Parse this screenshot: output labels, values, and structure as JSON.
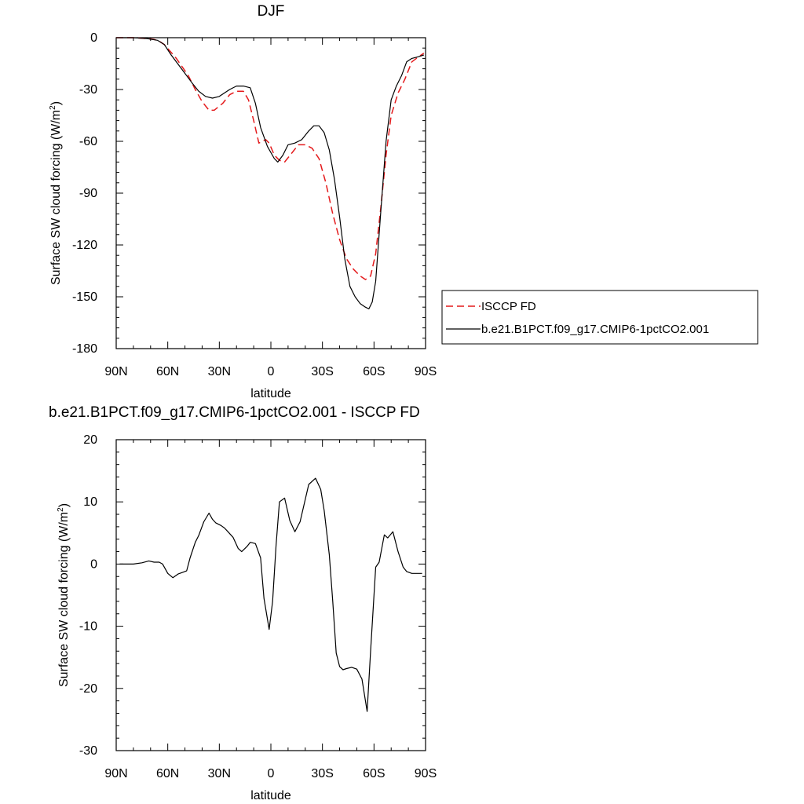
{
  "chart_data": [
    {
      "type": "line",
      "title": "DJF",
      "xlabel": "latitude",
      "ylabel_prefix": "Surface SW cloud forcing (W/m",
      "ylabel_sup": "2",
      "ylabel_suffix": ")",
      "xlim": [
        90,
        -90
      ],
      "ylim": [
        -180,
        0
      ],
      "yticks": [
        0,
        -30,
        -60,
        -90,
        -120,
        -150,
        -180
      ],
      "ytick_labels": [
        "0",
        "-30",
        "-60",
        "-90",
        "-120",
        "-150",
        "-180"
      ],
      "xticks": [
        90,
        60,
        30,
        0,
        -30,
        -60,
        -90
      ],
      "xtick_labels": [
        "90N",
        "60N",
        "30N",
        "0",
        "30S",
        "60S",
        "90S"
      ],
      "legend": {
        "position": "right",
        "entries": [
          "ISCCP FD",
          "b.e21.B1PCT.f09_g17.CMIP6-1pctCO2.001"
        ]
      },
      "series": [
        {
          "name": "ISCCP FD",
          "color": "#e41a1c",
          "dash": "dashed",
          "x": [
            90,
            80,
            72,
            68,
            65,
            62,
            55,
            48,
            44,
            40,
            36,
            33,
            28,
            24,
            20,
            16,
            13,
            10,
            7,
            3,
            1,
            -2,
            -5,
            -8,
            -12,
            -16,
            -20,
            -24,
            -28,
            -32,
            -36,
            -40,
            -44,
            -48,
            -52,
            -55,
            -58,
            -61,
            -64,
            -67,
            -70,
            -74,
            -78,
            -82,
            -86,
            -89
          ],
          "values": [
            0,
            0,
            -0.5,
            -1,
            -2,
            -4,
            -12,
            -22,
            -30,
            -37,
            -42,
            -42,
            -38,
            -33,
            -31,
            -31,
            -36,
            -48,
            -61,
            -59,
            -61,
            -68,
            -71,
            -72,
            -67,
            -62,
            -62,
            -64,
            -70,
            -84,
            -102,
            -117,
            -128,
            -134,
            -138,
            -140,
            -138,
            -125,
            -98,
            -68,
            -45,
            -32,
            -24,
            -14,
            -11,
            -9
          ]
        },
        {
          "name": "b.e21.B1PCT.f09_g17.CMIP6-1pctCO2.001",
          "color": "#000000",
          "dash": "solid",
          "x": [
            90,
            80,
            72,
            66,
            62,
            58,
            52,
            46,
            42,
            38,
            34,
            30,
            24,
            20,
            16,
            12,
            9,
            6,
            2,
            -2,
            -4,
            -7,
            -10,
            -14,
            -18,
            -22,
            -25,
            -28,
            -31,
            -34,
            -37,
            -40,
            -43,
            -46,
            -49,
            -52,
            -55,
            -57,
            -59,
            -61,
            -64,
            -67,
            -70,
            -73,
            -76,
            -79,
            -82,
            -86,
            -89
          ],
          "values": [
            0,
            0,
            -0.5,
            -1.5,
            -4,
            -10,
            -18,
            -26,
            -31,
            -34,
            -35,
            -34,
            -30,
            -28,
            -28,
            -29,
            -38,
            -52,
            -63,
            -70,
            -72,
            -68,
            -62,
            -61,
            -59,
            -54,
            -51,
            -51,
            -55,
            -65,
            -82,
            -104,
            -128,
            -144,
            -150,
            -154,
            -156,
            -157,
            -153,
            -141,
            -100,
            -60,
            -36,
            -28,
            -22,
            -14,
            -12,
            -11,
            -10
          ]
        }
      ]
    },
    {
      "type": "line",
      "title": "b.e21.B1PCT.f09_g17.CMIP6-1pctCO2.001 - ISCCP FD",
      "xlabel": "latitude",
      "ylabel_prefix": "Surface SW cloud forcing (W/m",
      "ylabel_sup": "2",
      "ylabel_suffix": ")",
      "xlim": [
        90,
        -90
      ],
      "ylim": [
        -30,
        20
      ],
      "yticks": [
        20,
        10,
        0,
        -10,
        -20,
        -30
      ],
      "ytick_labels": [
        "20",
        "10",
        "0",
        "-10",
        "-20",
        "-30"
      ],
      "xticks": [
        90,
        60,
        30,
        0,
        -30,
        -60,
        -90
      ],
      "xtick_labels": [
        "90N",
        "60N",
        "30N",
        "0",
        "30S",
        "60S",
        "90S"
      ],
      "series": [
        {
          "name": "b.e21.B1PCT.f09_g17.CMIP6-1pctCO2.001 - ISCCP FD",
          "color": "#000000",
          "dash": "solid",
          "x": [
            88,
            80,
            75,
            71,
            68,
            65,
            63,
            60,
            57,
            54,
            51,
            49,
            47,
            44,
            42,
            39,
            36,
            34,
            32,
            29,
            27,
            25,
            22,
            19,
            17,
            14,
            12,
            9,
            6,
            4,
            1,
            -1,
            -3,
            -5,
            -8,
            -11,
            -14,
            -17,
            -20,
            -22,
            -26,
            -29,
            -31,
            -34,
            -36,
            -38,
            -40,
            -42,
            -44,
            -47,
            -50,
            -53,
            -56,
            -58,
            -61,
            -63,
            -66,
            -68,
            -71,
            -74,
            -77,
            -79,
            -82,
            -85,
            -88
          ],
          "values": [
            0,
            0,
            0.2,
            0.5,
            0.3,
            0.3,
            0,
            -1.5,
            -2.2,
            -1.6,
            -1.3,
            -1.1,
            1.0,
            3.5,
            4.6,
            6.8,
            8.2,
            7.2,
            6.6,
            6.2,
            5.8,
            5.2,
            4.3,
            2.5,
            2.0,
            2.8,
            3.5,
            3.3,
            1.0,
            -5.5,
            -10.5,
            -6.0,
            3.0,
            10.0,
            10.6,
            7.0,
            5.2,
            6.8,
            10.4,
            12.8,
            13.8,
            12.0,
            8.6,
            1.5,
            -6.0,
            -14.3,
            -16.5,
            -17.0,
            -16.8,
            -16.6,
            -16.9,
            -18.5,
            -23.7,
            -14.0,
            -0.5,
            0.3,
            4.7,
            4.2,
            5.2,
            2.0,
            -0.5,
            -1.2,
            -1.5,
            -1.5,
            -1.5
          ]
        }
      ]
    }
  ]
}
